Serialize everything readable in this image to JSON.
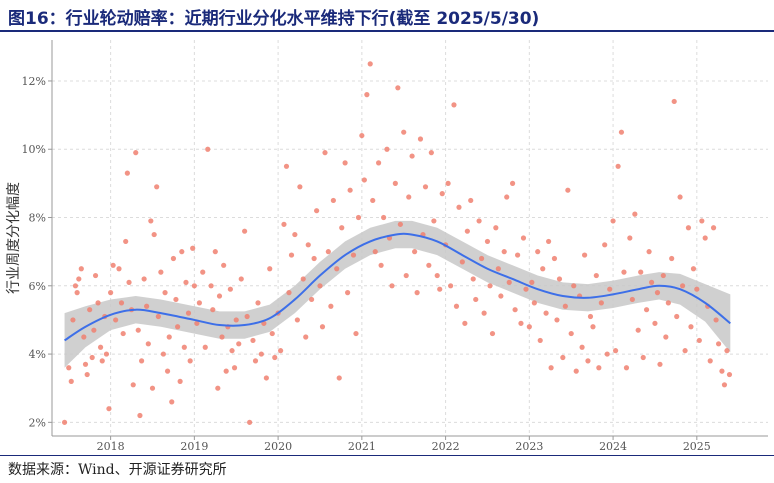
{
  "title": "图16：行业轮动赔率：近期行业分化水平维持下行(截至 2025/5/30)",
  "source": "数据来源：Wind、开源证券研究所",
  "colors": {
    "point": "#f08070",
    "trend": "#3d6fe8",
    "band": "#c8c8c8",
    "title": "#1a2a7a"
  },
  "chart_data": {
    "type": "scatter",
    "ylabel": "行业周度分化幅度",
    "xlabel": "",
    "xlim": [
      2017.3,
      2025.85
    ],
    "ylim": [
      1.6,
      13.2
    ],
    "x_ticks": [
      2018,
      2019,
      2020,
      2021,
      2022,
      2023,
      2024,
      2025
    ],
    "x_tick_labels": [
      "2018",
      "2019",
      "2020",
      "2021",
      "2022",
      "2023",
      "2024",
      "2025"
    ],
    "y_ticks": [
      2,
      4,
      6,
      8,
      10,
      12
    ],
    "y_tick_labels": [
      "2%",
      "4%",
      "6%",
      "8%",
      "10%",
      "12%"
    ],
    "grid": true,
    "trend": {
      "x": [
        2017.45,
        2017.7,
        2018.0,
        2018.3,
        2018.6,
        2019.0,
        2019.3,
        2019.6,
        2019.9,
        2020.2,
        2020.5,
        2020.8,
        2021.1,
        2021.4,
        2021.6,
        2021.9,
        2022.2,
        2022.5,
        2022.8,
        2023.1,
        2023.4,
        2023.7,
        2024.0,
        2024.3,
        2024.55,
        2024.8,
        2025.1,
        2025.4
      ],
      "y": [
        4.4,
        4.8,
        5.15,
        5.3,
        5.2,
        5.0,
        4.85,
        4.85,
        5.05,
        5.6,
        6.3,
        6.9,
        7.3,
        7.5,
        7.5,
        7.3,
        6.9,
        6.5,
        6.2,
        5.9,
        5.7,
        5.65,
        5.75,
        5.9,
        6.0,
        5.9,
        5.5,
        4.9
      ],
      "band_halfwidth": [
        0.8,
        0.6,
        0.45,
        0.4,
        0.4,
        0.4,
        0.4,
        0.4,
        0.4,
        0.4,
        0.4,
        0.4,
        0.4,
        0.4,
        0.4,
        0.4,
        0.4,
        0.4,
        0.4,
        0.4,
        0.4,
        0.4,
        0.4,
        0.4,
        0.4,
        0.45,
        0.55,
        0.85
      ]
    },
    "points": [
      [
        2017.45,
        2.0
      ],
      [
        2017.5,
        3.6
      ],
      [
        2017.53,
        3.2
      ],
      [
        2017.55,
        5.0
      ],
      [
        2017.58,
        6.0
      ],
      [
        2017.6,
        5.8
      ],
      [
        2017.62,
        6.2
      ],
      [
        2017.65,
        6.5
      ],
      [
        2017.68,
        4.5
      ],
      [
        2017.7,
        3.7
      ],
      [
        2017.72,
        3.4
      ],
      [
        2017.75,
        5.3
      ],
      [
        2017.78,
        3.9
      ],
      [
        2017.8,
        4.7
      ],
      [
        2017.82,
        6.3
      ],
      [
        2017.85,
        5.5
      ],
      [
        2017.88,
        4.2
      ],
      [
        2017.9,
        3.8
      ],
      [
        2017.93,
        5.1
      ],
      [
        2017.95,
        4.0
      ],
      [
        2017.98,
        2.4
      ],
      [
        2018.0,
        5.8
      ],
      [
        2018.03,
        6.6
      ],
      [
        2018.06,
        5.0
      ],
      [
        2018.1,
        6.5
      ],
      [
        2018.13,
        5.5
      ],
      [
        2018.15,
        4.6
      ],
      [
        2018.18,
        7.3
      ],
      [
        2018.2,
        9.3
      ],
      [
        2018.22,
        6.1
      ],
      [
        2018.25,
        5.3
      ],
      [
        2018.27,
        3.1
      ],
      [
        2018.3,
        9.9
      ],
      [
        2018.33,
        4.7
      ],
      [
        2018.35,
        2.2
      ],
      [
        2018.37,
        3.8
      ],
      [
        2018.4,
        6.2
      ],
      [
        2018.43,
        5.4
      ],
      [
        2018.45,
        4.3
      ],
      [
        2018.48,
        7.9
      ],
      [
        2018.5,
        3.0
      ],
      [
        2018.52,
        7.5
      ],
      [
        2018.55,
        8.9
      ],
      [
        2018.57,
        5.1
      ],
      [
        2018.6,
        6.4
      ],
      [
        2018.63,
        4.0
      ],
      [
        2018.65,
        5.8
      ],
      [
        2018.68,
        3.5
      ],
      [
        2018.7,
        4.5
      ],
      [
        2018.73,
        2.6
      ],
      [
        2018.75,
        6.8
      ],
      [
        2018.78,
        5.6
      ],
      [
        2018.8,
        4.8
      ],
      [
        2018.83,
        3.2
      ],
      [
        2018.85,
        7.0
      ],
      [
        2018.88,
        4.2
      ],
      [
        2018.9,
        6.1
      ],
      [
        2018.93,
        5.2
      ],
      [
        2018.95,
        3.8
      ],
      [
        2018.98,
        7.1
      ],
      [
        2019.0,
        6.0
      ],
      [
        2019.03,
        4.9
      ],
      [
        2019.06,
        5.5
      ],
      [
        2019.1,
        6.4
      ],
      [
        2019.13,
        4.2
      ],
      [
        2019.16,
        10.0
      ],
      [
        2019.2,
        6.0
      ],
      [
        2019.22,
        5.3
      ],
      [
        2019.25,
        7.0
      ],
      [
        2019.28,
        3.0
      ],
      [
        2019.3,
        5.7
      ],
      [
        2019.33,
        4.5
      ],
      [
        2019.35,
        6.6
      ],
      [
        2019.38,
        3.5
      ],
      [
        2019.4,
        4.8
      ],
      [
        2019.43,
        5.9
      ],
      [
        2019.45,
        4.1
      ],
      [
        2019.48,
        3.6
      ],
      [
        2019.5,
        5.0
      ],
      [
        2019.53,
        4.3
      ],
      [
        2019.56,
        6.2
      ],
      [
        2019.6,
        7.6
      ],
      [
        2019.63,
        5.1
      ],
      [
        2019.66,
        2.0
      ],
      [
        2019.7,
        4.4
      ],
      [
        2019.73,
        3.8
      ],
      [
        2019.76,
        5.5
      ],
      [
        2019.8,
        4.0
      ],
      [
        2019.83,
        4.9
      ],
      [
        2019.86,
        3.3
      ],
      [
        2019.9,
        6.5
      ],
      [
        2019.93,
        4.6
      ],
      [
        2019.96,
        3.9
      ],
      [
        2020.0,
        5.2
      ],
      [
        2020.03,
        4.1
      ],
      [
        2020.07,
        7.8
      ],
      [
        2020.1,
        9.5
      ],
      [
        2020.13,
        5.8
      ],
      [
        2020.16,
        6.9
      ],
      [
        2020.2,
        7.5
      ],
      [
        2020.23,
        5.0
      ],
      [
        2020.26,
        8.9
      ],
      [
        2020.3,
        6.2
      ],
      [
        2020.33,
        4.5
      ],
      [
        2020.36,
        7.2
      ],
      [
        2020.4,
        5.6
      ],
      [
        2020.43,
        6.8
      ],
      [
        2020.46,
        8.2
      ],
      [
        2020.5,
        6.0
      ],
      [
        2020.53,
        4.8
      ],
      [
        2020.56,
        9.9
      ],
      [
        2020.6,
        7.0
      ],
      [
        2020.63,
        5.4
      ],
      [
        2020.66,
        8.5
      ],
      [
        2020.7,
        6.5
      ],
      [
        2020.73,
        3.3
      ],
      [
        2020.76,
        7.7
      ],
      [
        2020.8,
        9.6
      ],
      [
        2020.83,
        5.8
      ],
      [
        2020.86,
        8.8
      ],
      [
        2020.9,
        6.9
      ],
      [
        2020.93,
        4.6
      ],
      [
        2020.96,
        8.0
      ],
      [
        2021.0,
        10.4
      ],
      [
        2021.03,
        9.1
      ],
      [
        2021.06,
        11.6
      ],
      [
        2021.1,
        12.5
      ],
      [
        2021.13,
        8.5
      ],
      [
        2021.16,
        7.0
      ],
      [
        2021.2,
        9.6
      ],
      [
        2021.23,
        6.6
      ],
      [
        2021.26,
        8.0
      ],
      [
        2021.3,
        10.0
      ],
      [
        2021.33,
        7.4
      ],
      [
        2021.36,
        6.0
      ],
      [
        2021.4,
        9.0
      ],
      [
        2021.43,
        11.8
      ],
      [
        2021.46,
        7.8
      ],
      [
        2021.5,
        10.5
      ],
      [
        2021.53,
        6.3
      ],
      [
        2021.56,
        8.6
      ],
      [
        2021.6,
        9.8
      ],
      [
        2021.63,
        7.0
      ],
      [
        2021.66,
        5.8
      ],
      [
        2021.7,
        10.3
      ],
      [
        2021.73,
        7.5
      ],
      [
        2021.76,
        8.9
      ],
      [
        2021.8,
        6.6
      ],
      [
        2021.83,
        9.9
      ],
      [
        2021.86,
        7.9
      ],
      [
        2021.9,
        6.3
      ],
      [
        2021.93,
        5.9
      ],
      [
        2021.96,
        8.7
      ],
      [
        2022.0,
        7.2
      ],
      [
        2022.03,
        9.0
      ],
      [
        2022.06,
        6.0
      ],
      [
        2022.1,
        11.3
      ],
      [
        2022.13,
        5.4
      ],
      [
        2022.16,
        8.3
      ],
      [
        2022.2,
        6.7
      ],
      [
        2022.23,
        4.9
      ],
      [
        2022.26,
        7.6
      ],
      [
        2022.3,
        8.5
      ],
      [
        2022.33,
        6.2
      ],
      [
        2022.36,
        5.6
      ],
      [
        2022.4,
        7.9
      ],
      [
        2022.43,
        6.8
      ],
      [
        2022.46,
        5.2
      ],
      [
        2022.5,
        7.3
      ],
      [
        2022.53,
        6.0
      ],
      [
        2022.56,
        4.6
      ],
      [
        2022.6,
        7.7
      ],
      [
        2022.63,
        6.5
      ],
      [
        2022.66,
        5.7
      ],
      [
        2022.7,
        7.0
      ],
      [
        2022.73,
        8.6
      ],
      [
        2022.76,
        6.1
      ],
      [
        2022.8,
        9.0
      ],
      [
        2022.83,
        5.3
      ],
      [
        2022.86,
        6.9
      ],
      [
        2022.9,
        4.9
      ],
      [
        2022.93,
        7.4
      ],
      [
        2022.96,
        5.9
      ],
      [
        2023.0,
        4.8
      ],
      [
        2023.03,
        6.1
      ],
      [
        2023.06,
        5.5
      ],
      [
        2023.1,
        7.0
      ],
      [
        2023.13,
        4.4
      ],
      [
        2023.16,
        6.5
      ],
      [
        2023.2,
        5.2
      ],
      [
        2023.23,
        7.3
      ],
      [
        2023.26,
        3.6
      ],
      [
        2023.3,
        6.8
      ],
      [
        2023.33,
        5.0
      ],
      [
        2023.36,
        6.2
      ],
      [
        2023.4,
        3.9
      ],
      [
        2023.43,
        5.4
      ],
      [
        2023.46,
        8.8
      ],
      [
        2023.5,
        4.6
      ],
      [
        2023.53,
        6.0
      ],
      [
        2023.56,
        3.5
      ],
      [
        2023.6,
        5.7
      ],
      [
        2023.63,
        4.2
      ],
      [
        2023.66,
        6.9
      ],
      [
        2023.7,
        3.8
      ],
      [
        2023.73,
        5.1
      ],
      [
        2023.76,
        4.8
      ],
      [
        2023.8,
        6.3
      ],
      [
        2023.83,
        3.6
      ],
      [
        2023.86,
        5.5
      ],
      [
        2023.9,
        7.2
      ],
      [
        2023.93,
        4.0
      ],
      [
        2023.96,
        5.9
      ],
      [
        2024.0,
        7.9
      ],
      [
        2024.03,
        4.1
      ],
      [
        2024.06,
        9.5
      ],
      [
        2024.1,
        10.5
      ],
      [
        2024.13,
        6.4
      ],
      [
        2024.16,
        3.6
      ],
      [
        2024.2,
        7.4
      ],
      [
        2024.23,
        5.6
      ],
      [
        2024.26,
        8.1
      ],
      [
        2024.3,
        4.7
      ],
      [
        2024.33,
        6.4
      ],
      [
        2024.36,
        3.9
      ],
      [
        2024.4,
        5.3
      ],
      [
        2024.43,
        7.0
      ],
      [
        2024.46,
        6.1
      ],
      [
        2024.5,
        4.9
      ],
      [
        2024.53,
        5.8
      ],
      [
        2024.56,
        3.7
      ],
      [
        2024.6,
        6.3
      ],
      [
        2024.63,
        4.5
      ],
      [
        2024.66,
        5.5
      ],
      [
        2024.7,
        6.8
      ],
      [
        2024.73,
        11.4
      ],
      [
        2024.76,
        5.1
      ],
      [
        2024.8,
        8.6
      ],
      [
        2024.83,
        6.0
      ],
      [
        2024.86,
        4.1
      ],
      [
        2024.9,
        7.7
      ],
      [
        2024.93,
        4.8
      ],
      [
        2024.96,
        6.5
      ],
      [
        2025.0,
        5.9
      ],
      [
        2025.03,
        4.4
      ],
      [
        2025.06,
        7.9
      ],
      [
        2025.1,
        7.4
      ],
      [
        2025.13,
        5.4
      ],
      [
        2025.16,
        3.8
      ],
      [
        2025.2,
        7.7
      ],
      [
        2025.23,
        5.0
      ],
      [
        2025.26,
        4.3
      ],
      [
        2025.3,
        3.5
      ],
      [
        2025.33,
        3.1
      ],
      [
        2025.36,
        4.1
      ],
      [
        2025.39,
        3.4
      ]
    ]
  }
}
